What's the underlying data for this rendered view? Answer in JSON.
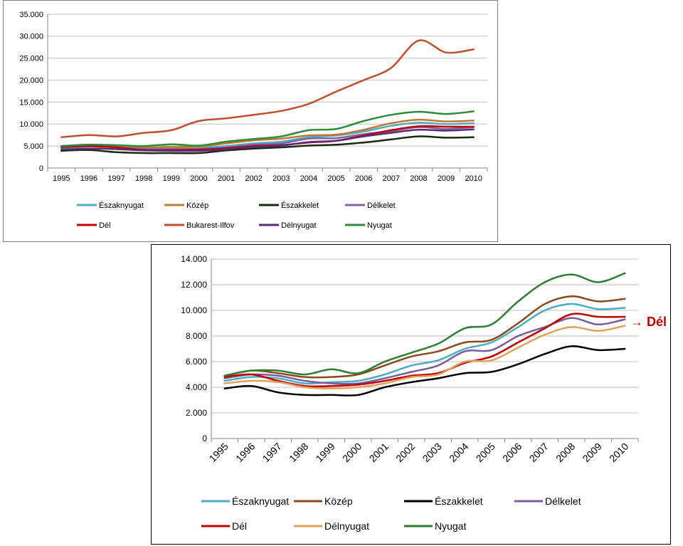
{
  "chart_data": [
    {
      "type": "line",
      "title": "",
      "xlabel": "",
      "ylabel": "",
      "ylim": [
        0,
        35000
      ],
      "y_ticks": [
        "0",
        "5.000",
        "10.000",
        "15.000",
        "20.000",
        "25.000",
        "30.000",
        "35.000"
      ],
      "grid": true,
      "legend_position": "bottom",
      "categories": [
        "1995",
        "1996",
        "1997",
        "1998",
        "1999",
        "2000",
        "2001",
        "2002",
        "2003",
        "2004",
        "2005",
        "2006",
        "2007",
        "2008",
        "2009",
        "2010"
      ],
      "series": [
        {
          "name": "Északnyugat",
          "color": "#4bacc6",
          "values": [
            4500,
            4900,
            4800,
            4400,
            4600,
            4600,
            5000,
            5600,
            6000,
            7000,
            7400,
            8300,
            9600,
            10300,
            10000,
            10200
          ]
        },
        {
          "name": "Közép",
          "color": "#c0782d",
          "values": [
            4900,
            5300,
            5100,
            4700,
            4800,
            4900,
            5600,
            6300,
            6700,
            7400,
            7600,
            8700,
            10200,
            11000,
            10600,
            10800
          ]
        },
        {
          "name": "Északkelet",
          "color": "#1a2a10",
          "values": [
            3900,
            4100,
            3600,
            3400,
            3400,
            3400,
            4000,
            4400,
            4700,
            5100,
            5300,
            5800,
            6500,
            7200,
            6900,
            7000
          ]
        },
        {
          "name": "Délkelet",
          "color": "#8064a2",
          "values": [
            4700,
            4900,
            4700,
            4300,
            4300,
            4300,
            4700,
            5300,
            5600,
            6700,
            6800,
            7700,
            8400,
            9300,
            8900,
            9300
          ]
        },
        {
          "name": "Dél",
          "color": "#c00000",
          "values": [
            4800,
            5000,
            4700,
            4100,
            4100,
            4200,
            4500,
            5000,
            5200,
            5800,
            6200,
            7400,
            8600,
            9500,
            9400,
            9400
          ]
        },
        {
          "name": "Bukarest-Ilfov",
          "color": "#c0502d",
          "values": [
            7000,
            7500,
            7200,
            8000,
            8600,
            10700,
            11300,
            12100,
            13000,
            14600,
            17400,
            20000,
            22800,
            29000,
            26300,
            27000
          ]
        },
        {
          "name": "Délnyugat",
          "color": "#5b2a78",
          "values": [
            4200,
            4400,
            4300,
            4000,
            3900,
            3900,
            4300,
            4800,
            5100,
            5900,
            6200,
            7200,
            8000,
            8700,
            8500,
            8800
          ]
        },
        {
          "name": "Nyugat",
          "color": "#2e8b3a",
          "values": [
            5000,
            5300,
            5200,
            5000,
            5400,
            5100,
            6000,
            6600,
            7200,
            8600,
            8900,
            10700,
            12100,
            12800,
            12300,
            12900
          ]
        }
      ]
    },
    {
      "type": "line",
      "title": "",
      "xlabel": "",
      "ylabel": "",
      "ylim": [
        0,
        14000
      ],
      "y_ticks": [
        "0",
        "2.000",
        "4.000",
        "6.000",
        "8.000",
        "10.000",
        "12.000",
        "14.000"
      ],
      "grid": true,
      "legend_position": "bottom",
      "categories": [
        "1995",
        "1996",
        "1997",
        "1998",
        "1999",
        "2000",
        "2001",
        "2002",
        "2003",
        "2004",
        "2005",
        "2006",
        "2007",
        "2008",
        "2009",
        "2010"
      ],
      "series": [
        {
          "name": "Északnyugat",
          "color": "#4bacc6",
          "values": [
            4500,
            4800,
            4700,
            4300,
            4400,
            4500,
            5000,
            5700,
            6100,
            7000,
            7500,
            8700,
            10000,
            10500,
            10100,
            10200
          ]
        },
        {
          "name": "Közép",
          "color": "#8b4a1c",
          "values": [
            4900,
            5300,
            5100,
            4800,
            4800,
            5000,
            5700,
            6400,
            6800,
            7500,
            7700,
            9000,
            10500,
            11100,
            10700,
            10900
          ]
        },
        {
          "name": "Északkelet",
          "color": "#000000",
          "values": [
            3900,
            4100,
            3600,
            3400,
            3400,
            3400,
            4000,
            4400,
            4700,
            5100,
            5200,
            5800,
            6600,
            7200,
            6900,
            7000
          ]
        },
        {
          "name": "Délkelet",
          "color": "#7a5c9a",
          "values": [
            4700,
            5000,
            4900,
            4500,
            4300,
            4300,
            4700,
            5200,
            5700,
            6800,
            6900,
            8000,
            8700,
            9400,
            8900,
            9300
          ]
        },
        {
          "name": "Dél",
          "color": "#c00000",
          "values": [
            4800,
            5000,
            4500,
            4100,
            4100,
            4200,
            4500,
            4900,
            5100,
            5900,
            6400,
            7500,
            8600,
            9700,
            9500,
            9500
          ]
        },
        {
          "name": "Délnyugat",
          "color": "#e2a05a",
          "values": [
            4300,
            4500,
            4400,
            4000,
            3900,
            4000,
            4300,
            4800,
            5000,
            6000,
            6100,
            7100,
            8100,
            8700,
            8400,
            8800
          ]
        },
        {
          "name": "Nyugat",
          "color": "#2e7d32",
          "values": [
            4900,
            5300,
            5300,
            5000,
            5400,
            5100,
            6000,
            6700,
            7400,
            8600,
            8900,
            10700,
            12200,
            12800,
            12200,
            12900
          ]
        }
      ]
    }
  ],
  "annotation": {
    "text": "→ Dél"
  }
}
